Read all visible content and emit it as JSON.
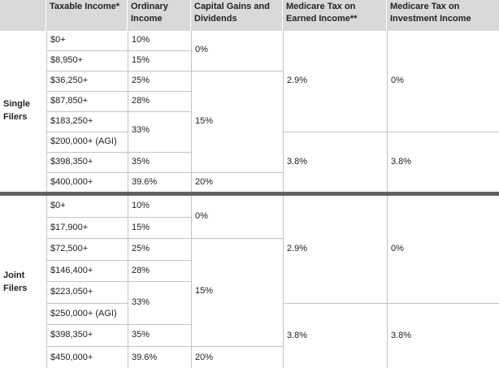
{
  "headers": [
    "",
    "Taxable Income*",
    "Ordinary Income",
    "Capital Gains and Dividends",
    "Medicare Tax on Earned Income**",
    "Medicare Tax on Investment Income"
  ],
  "groups": [
    {
      "label": "Single Filers",
      "brackets": [
        "$0+",
        "$8,950+",
        "$36,250+",
        "$87,850+",
        "$183,250+",
        "$200,000+ (AGI)",
        "$398,350+",
        "$400,000+"
      ],
      "ordinary": [
        "10%",
        "15%",
        "25%",
        "28%",
        "33%",
        "35%",
        "39.6%"
      ],
      "capital": [
        "0%",
        "15%",
        "20%"
      ],
      "medicare_earned": [
        "2.9%",
        "3.8%"
      ],
      "medicare_investment": [
        "0%",
        "3.8%"
      ]
    },
    {
      "label": "Joint Filers",
      "brackets": [
        "$0+",
        "$17,900+",
        "$72,500+",
        "$146,400+",
        "$223,050+",
        "$250,000+ (AGI)",
        "$398,350+",
        "$450,000+"
      ],
      "ordinary": [
        "10%",
        "15%",
        "25%",
        "28%",
        "33%",
        "35%",
        "39.6%"
      ],
      "capital": [
        "0%",
        "15%",
        "20%"
      ],
      "medicare_earned": [
        "2.9%",
        "3.8%"
      ],
      "medicare_investment": [
        "0%",
        "3.8%"
      ]
    }
  ]
}
